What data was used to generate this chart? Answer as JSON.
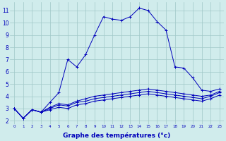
{
  "background_color": "#d0ecec",
  "grid_color": "#a0c8c8",
  "line_color": "#0000bb",
  "xlabel": "Graphe des températures (°c)",
  "xlabel_fontsize": 6.5,
  "yticks": [
    2,
    3,
    4,
    5,
    6,
    7,
    8,
    9,
    10,
    11
  ],
  "xtick_labels": [
    "0",
    "1",
    "2",
    "3",
    "4",
    "5",
    "6",
    "7",
    "8",
    "9",
    "10",
    "11",
    "12",
    "13",
    "14",
    "15",
    "16",
    "17",
    "18",
    "19",
    "20",
    "21",
    "22",
    "23"
  ],
  "xlim": [
    -0.5,
    23.5
  ],
  "ylim": [
    1.7,
    11.7
  ],
  "series": [
    [
      3.0,
      2.2,
      2.9,
      2.7,
      3.5,
      4.3,
      7.0,
      6.4,
      7.4,
      9.0,
      10.5,
      10.3,
      10.2,
      10.5,
      11.2,
      11.0,
      10.1,
      9.4,
      6.4,
      6.3,
      5.5,
      4.5,
      4.4,
      4.6
    ],
    [
      3.0,
      2.2,
      2.9,
      2.7,
      3.1,
      3.4,
      3.3,
      3.6,
      3.8,
      4.0,
      4.1,
      4.2,
      4.3,
      4.4,
      4.5,
      4.6,
      4.5,
      4.4,
      4.3,
      4.2,
      4.1,
      4.0,
      4.1,
      4.4
    ],
    [
      3.0,
      2.2,
      2.9,
      2.7,
      3.0,
      3.3,
      3.2,
      3.5,
      3.6,
      3.8,
      3.9,
      4.0,
      4.1,
      4.2,
      4.3,
      4.4,
      4.3,
      4.2,
      4.1,
      4.0,
      3.9,
      3.8,
      4.0,
      4.3
    ],
    [
      3.0,
      2.2,
      2.9,
      2.7,
      2.9,
      3.1,
      3.0,
      3.3,
      3.4,
      3.6,
      3.7,
      3.8,
      3.9,
      4.0,
      4.1,
      4.2,
      4.1,
      4.0,
      3.9,
      3.8,
      3.7,
      3.6,
      3.8,
      4.1
    ]
  ]
}
